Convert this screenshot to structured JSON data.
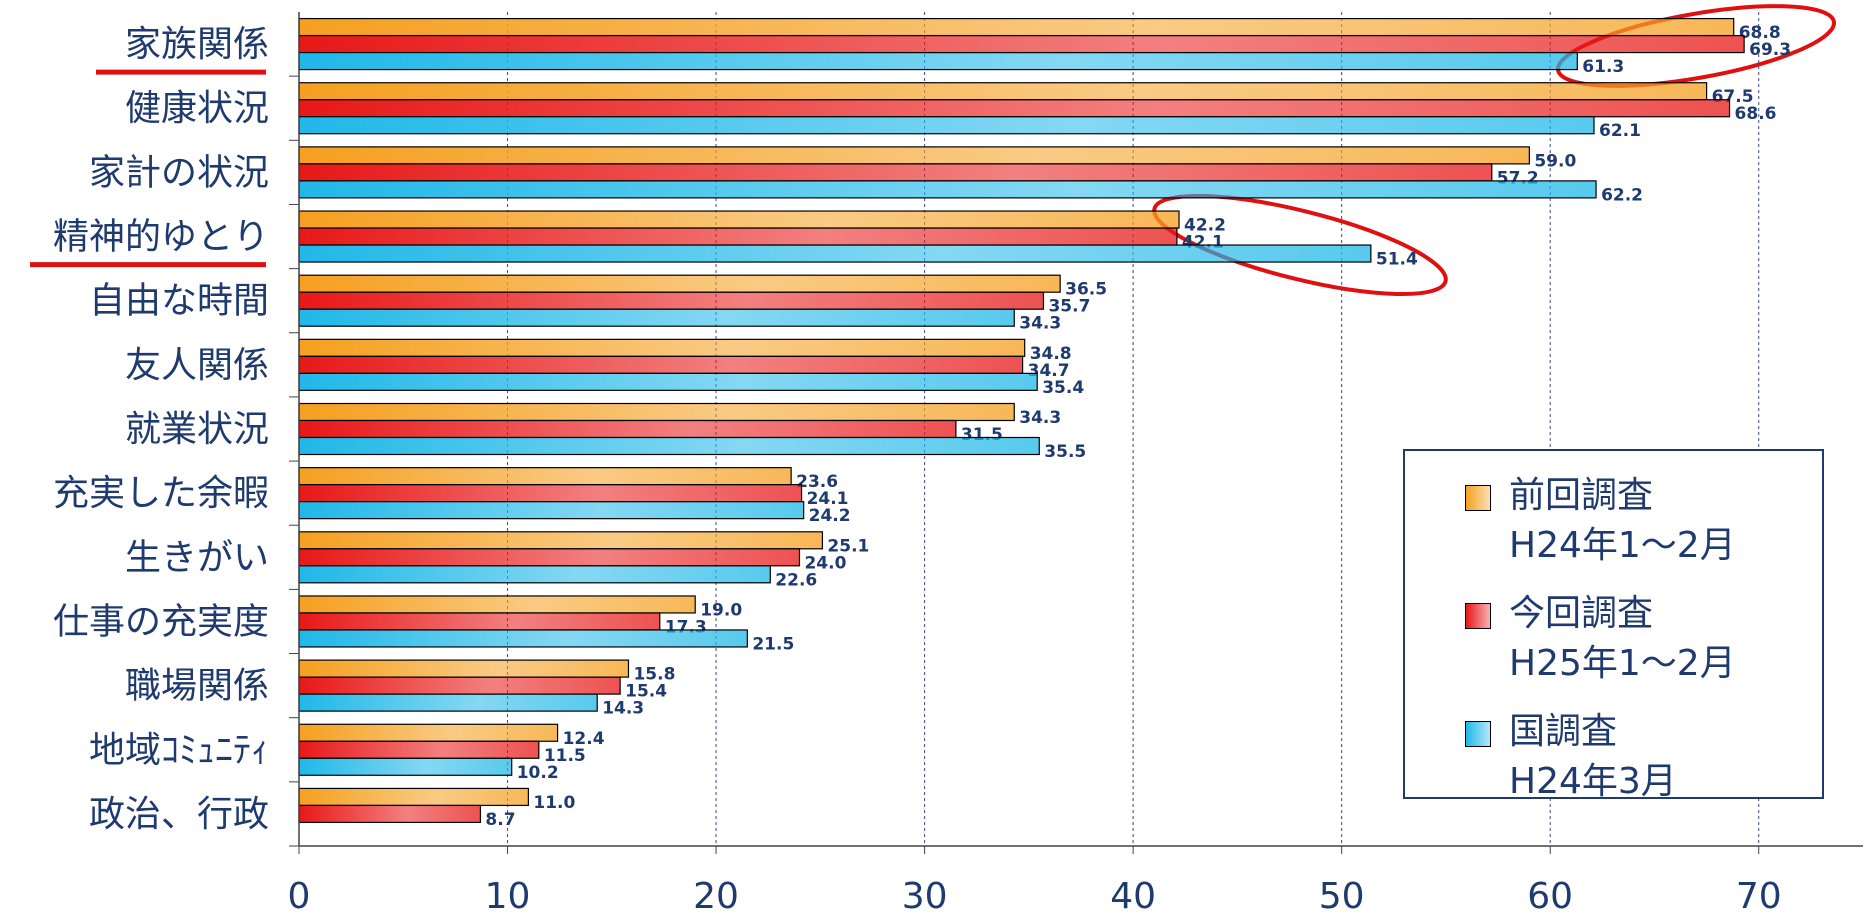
{
  "chart_data": {
    "type": "bar",
    "orientation": "horizontal",
    "categories": [
      "家族関係",
      "健康状況",
      "家計の状況",
      "精神的ゆとり",
      "自由な時間",
      "友人関係",
      "就業状況",
      "充実した余暇",
      "生きがい",
      "仕事の充実度",
      "職場関係",
      "地域ｺﾐｭﾆﾃｨ",
      "政治、行政"
    ],
    "series": [
      {
        "name": "前回調査\nH24年1～2月",
        "color": "#f5a020",
        "values": [
          68.8,
          67.5,
          59,
          42.2,
          36.5,
          34.8,
          34.3,
          23.6,
          25.1,
          19,
          15.8,
          12.4,
          11
        ],
        "value_labels": [
          "68.8",
          "67.5",
          "59.0",
          "42.2",
          "36.5",
          "34.8",
          "34.3",
          "23.6",
          "25.1",
          "19.0",
          "15.8",
          "12.4",
          "11.0"
        ]
      },
      {
        "name": "今回調査\nH25年1～2月",
        "color": "#e81818",
        "values": [
          69.3,
          68.6,
          57.2,
          42.1,
          35.7,
          34.7,
          31.5,
          24.1,
          24,
          17.3,
          15.4,
          11.5,
          8.7
        ],
        "value_labels": [
          "69.3",
          "68.6",
          "57.2",
          "42.1",
          "35.7",
          "34.7",
          "31.5",
          "24.1",
          "24.0",
          "17.3",
          "15.4",
          "11.5",
          "8.7"
        ]
      },
      {
        "name": "国調査\nH24年3月",
        "color": "#20b8e8",
        "values": [
          61.3,
          62.1,
          62.2,
          51.4,
          34.3,
          35.4,
          35.5,
          24.2,
          22.6,
          21.5,
          14.3,
          10.2,
          null
        ],
        "value_labels": [
          "61.3",
          "62.1",
          "62.2",
          "51.4",
          "34.3",
          "35.4",
          "35.5",
          "24.2",
          "22.6",
          "21.5",
          "14.3",
          "10.2",
          null
        ]
      }
    ],
    "xlim": [
      0,
      75
    ],
    "xticks": [
      0,
      10,
      20,
      30,
      40,
      50,
      60,
      70
    ],
    "grid": true,
    "legend": "lower right"
  }
}
